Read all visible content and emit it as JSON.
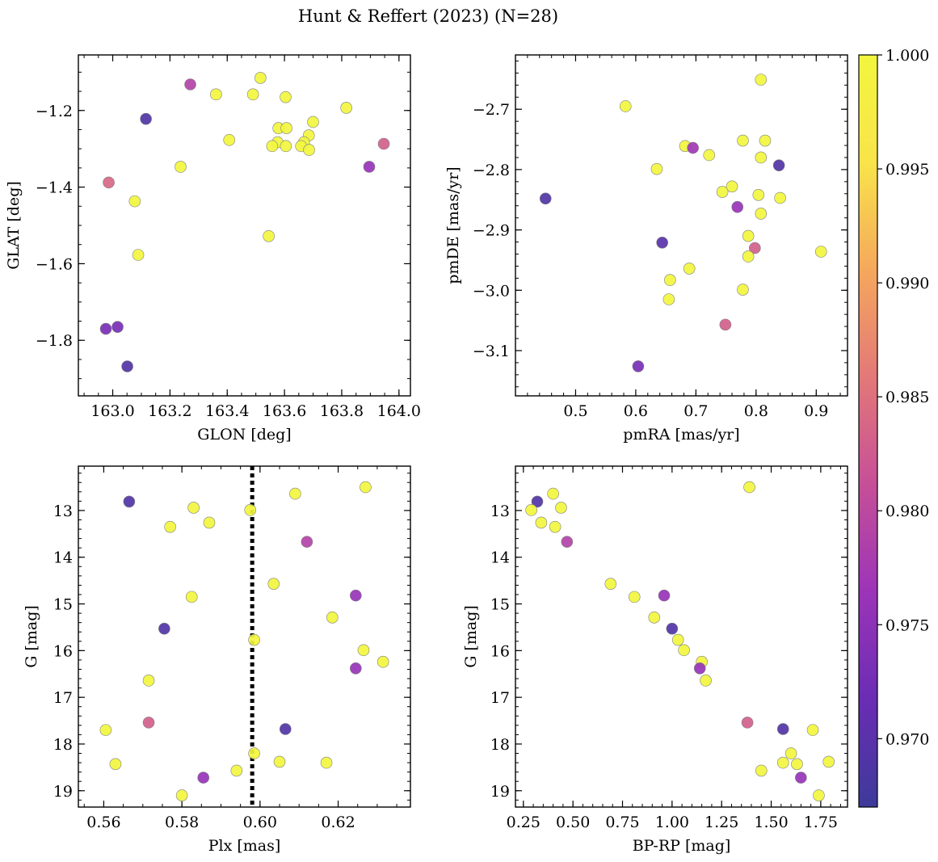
{
  "figure": {
    "title": "Hunt & Reffert (2023) (N=28)",
    "colorbar": {
      "vmin": 0.967,
      "vmax": 1.0,
      "ticks": [
        0.97,
        0.975,
        0.98,
        0.985,
        0.99,
        0.995,
        1.0
      ],
      "tick_labels": [
        "0.970",
        "0.975",
        "0.980",
        "0.985",
        "0.990",
        "0.995",
        "1.000"
      ],
      "colormap": "plasma",
      "colormap_stops": [
        "#3d3a9a",
        "#6a2db4",
        "#9c34b8",
        "#c64f98",
        "#e37878",
        "#f5a85c",
        "#f9e44a",
        "#f2f63e"
      ]
    },
    "marker_edge_color": "#7f7f7f",
    "vline_color": "#000000"
  },
  "chart_data": [
    {
      "type": "scatter",
      "xlabel": "GLON [deg]",
      "ylabel": "GLAT [deg]",
      "xlim": [
        162.88,
        164.04
      ],
      "ylim": [
        -1.945,
        -1.055
      ],
      "y_inverted": false,
      "xticks": [
        163.0,
        163.2,
        163.4,
        163.6,
        163.8,
        164.0
      ],
      "xtick_labels": [
        "163.0",
        "163.2",
        "163.4",
        "163.6",
        "163.8",
        "164.0"
      ],
      "xminor": 0.05,
      "yticks": [
        -1.8,
        -1.6,
        -1.4,
        -1.2
      ],
      "ytick_labels": [
        "−1.8",
        "−1.6",
        "−1.4",
        "−1.2"
      ],
      "yminor": 0.05,
      "points": [
        {
          "x": 163.271,
          "y": -1.132,
          "c": 0.979
        },
        {
          "x": 163.516,
          "y": -1.115,
          "c": 1.0
        },
        {
          "x": 163.361,
          "y": -1.158,
          "c": 1.0
        },
        {
          "x": 163.49,
          "y": -1.158,
          "c": 1.0
        },
        {
          "x": 163.604,
          "y": -1.165,
          "c": 1.0
        },
        {
          "x": 163.816,
          "y": -1.193,
          "c": 1.0
        },
        {
          "x": 163.116,
          "y": -1.222,
          "c": 0.969
        },
        {
          "x": 163.7,
          "y": -1.23,
          "c": 1.0
        },
        {
          "x": 163.579,
          "y": -1.246,
          "c": 1.0
        },
        {
          "x": 163.607,
          "y": -1.246,
          "c": 1.0
        },
        {
          "x": 163.685,
          "y": -1.265,
          "c": 1.0
        },
        {
          "x": 163.407,
          "y": -1.277,
          "c": 1.0
        },
        {
          "x": 163.576,
          "y": -1.283,
          "c": 1.0
        },
        {
          "x": 163.668,
          "y": -1.283,
          "c": 1.0
        },
        {
          "x": 163.947,
          "y": -1.287,
          "c": 0.983
        },
        {
          "x": 163.557,
          "y": -1.293,
          "c": 1.0
        },
        {
          "x": 163.605,
          "y": -1.293,
          "c": 1.0
        },
        {
          "x": 163.658,
          "y": -1.293,
          "c": 1.0
        },
        {
          "x": 163.686,
          "y": -1.303,
          "c": 1.0
        },
        {
          "x": 163.237,
          "y": -1.347,
          "c": 1.0
        },
        {
          "x": 163.896,
          "y": -1.347,
          "c": 0.976
        },
        {
          "x": 162.986,
          "y": -1.388,
          "c": 0.984
        },
        {
          "x": 163.077,
          "y": -1.437,
          "c": 1.0
        },
        {
          "x": 163.545,
          "y": -1.528,
          "c": 1.0
        },
        {
          "x": 163.089,
          "y": -1.577,
          "c": 1.0
        },
        {
          "x": 162.976,
          "y": -1.77,
          "c": 0.973
        },
        {
          "x": 163.017,
          "y": -1.765,
          "c": 0.973
        },
        {
          "x": 163.051,
          "y": -1.868,
          "c": 0.969
        }
      ]
    },
    {
      "type": "scatter",
      "xlabel": "pmRA [mas/yr]",
      "ylabel": "pmDE [mas/yr]",
      "xlim": [
        0.4,
        0.952
      ],
      "ylim": [
        -3.175,
        -2.61
      ],
      "y_inverted": false,
      "xticks": [
        0.5,
        0.6,
        0.7,
        0.8,
        0.9
      ],
      "xtick_labels": [
        "0.5",
        "0.6",
        "0.7",
        "0.8",
        "0.9"
      ],
      "xminor": 0.02,
      "yticks": [
        -3.1,
        -3.0,
        -2.9,
        -2.8,
        -2.7
      ],
      "ytick_labels": [
        "−3.1",
        "−3.0",
        "−2.9",
        "−2.8",
        "−2.7"
      ],
      "yminor": 0.02,
      "points": [
        {
          "x": 0.808,
          "y": -2.651,
          "c": 1.0
        },
        {
          "x": 0.583,
          "y": -2.695,
          "c": 1.0
        },
        {
          "x": 0.778,
          "y": -2.752,
          "c": 1.0
        },
        {
          "x": 0.815,
          "y": -2.752,
          "c": 1.0
        },
        {
          "x": 0.682,
          "y": -2.761,
          "c": 1.0
        },
        {
          "x": 0.695,
          "y": -2.764,
          "c": 0.977
        },
        {
          "x": 0.722,
          "y": -2.776,
          "c": 1.0
        },
        {
          "x": 0.808,
          "y": -2.78,
          "c": 1.0
        },
        {
          "x": 0.838,
          "y": -2.793,
          "c": 0.969
        },
        {
          "x": 0.635,
          "y": -2.799,
          "c": 1.0
        },
        {
          "x": 0.76,
          "y": -2.828,
          "c": 1.0
        },
        {
          "x": 0.744,
          "y": -2.837,
          "c": 1.0
        },
        {
          "x": 0.804,
          "y": -2.842,
          "c": 1.0
        },
        {
          "x": 0.84,
          "y": -2.847,
          "c": 1.0
        },
        {
          "x": 0.45,
          "y": -2.848,
          "c": 0.969
        },
        {
          "x": 0.769,
          "y": -2.862,
          "c": 0.976
        },
        {
          "x": 0.808,
          "y": -2.873,
          "c": 1.0
        },
        {
          "x": 0.787,
          "y": -2.91,
          "c": 1.0
        },
        {
          "x": 0.644,
          "y": -2.921,
          "c": 0.97
        },
        {
          "x": 0.798,
          "y": -2.93,
          "c": 0.983
        },
        {
          "x": 0.908,
          "y": -2.936,
          "c": 1.0
        },
        {
          "x": 0.787,
          "y": -2.944,
          "c": 1.0
        },
        {
          "x": 0.689,
          "y": -2.964,
          "c": 1.0
        },
        {
          "x": 0.657,
          "y": -2.983,
          "c": 1.0
        },
        {
          "x": 0.778,
          "y": -2.999,
          "c": 1.0
        },
        {
          "x": 0.655,
          "y": -3.015,
          "c": 1.0
        },
        {
          "x": 0.749,
          "y": -3.057,
          "c": 0.983
        },
        {
          "x": 0.604,
          "y": -3.126,
          "c": 0.973
        }
      ]
    },
    {
      "type": "scatter",
      "xlabel": "Plx [mas]",
      "ylabel": "G [mag]",
      "xlim": [
        0.5535,
        0.6385
      ],
      "ylim": [
        19.35,
        12.05
      ],
      "y_inverted": true,
      "vline": 0.598,
      "xticks": [
        0.56,
        0.58,
        0.6,
        0.62
      ],
      "xtick_labels": [
        "0.56",
        "0.58",
        "0.60",
        "0.62"
      ],
      "xminor": 0.005,
      "yticks": [
        13,
        14,
        15,
        16,
        17,
        18,
        19
      ],
      "ytick_labels": [
        "13",
        "14",
        "15",
        "16",
        "17",
        "18",
        "19"
      ],
      "yminor": 0.2,
      "points": [
        {
          "x": 0.627,
          "y": 12.5,
          "c": 1.0
        },
        {
          "x": 0.609,
          "y": 12.64,
          "c": 1.0
        },
        {
          "x": 0.5665,
          "y": 12.81,
          "c": 0.969
        },
        {
          "x": 0.583,
          "y": 12.94,
          "c": 1.0
        },
        {
          "x": 0.5975,
          "y": 12.99,
          "c": 1.0
        },
        {
          "x": 0.587,
          "y": 13.26,
          "c": 1.0
        },
        {
          "x": 0.577,
          "y": 13.35,
          "c": 1.0
        },
        {
          "x": 0.612,
          "y": 13.67,
          "c": 0.979
        },
        {
          "x": 0.6035,
          "y": 14.57,
          "c": 1.0
        },
        {
          "x": 0.6245,
          "y": 14.82,
          "c": 0.976
        },
        {
          "x": 0.5825,
          "y": 14.85,
          "c": 1.0
        },
        {
          "x": 0.6185,
          "y": 15.29,
          "c": 1.0
        },
        {
          "x": 0.5755,
          "y": 15.53,
          "c": 0.969
        },
        {
          "x": 0.5985,
          "y": 15.77,
          "c": 1.0
        },
        {
          "x": 0.6265,
          "y": 15.99,
          "c": 1.0
        },
        {
          "x": 0.6315,
          "y": 16.24,
          "c": 1.0
        },
        {
          "x": 0.6245,
          "y": 16.38,
          "c": 0.976
        },
        {
          "x": 0.5715,
          "y": 16.64,
          "c": 1.0
        },
        {
          "x": 0.5715,
          "y": 17.54,
          "c": 0.983
        },
        {
          "x": 0.6065,
          "y": 17.68,
          "c": 0.969
        },
        {
          "x": 0.5605,
          "y": 17.7,
          "c": 1.0
        },
        {
          "x": 0.5985,
          "y": 18.2,
          "c": 1.0
        },
        {
          "x": 0.605,
          "y": 18.38,
          "c": 1.0
        },
        {
          "x": 0.617,
          "y": 18.4,
          "c": 1.0
        },
        {
          "x": 0.563,
          "y": 18.43,
          "c": 1.0
        },
        {
          "x": 0.594,
          "y": 18.57,
          "c": 1.0
        },
        {
          "x": 0.5855,
          "y": 18.72,
          "c": 0.976
        },
        {
          "x": 0.58,
          "y": 19.1,
          "c": 1.0
        }
      ]
    },
    {
      "type": "scatter",
      "xlabel": "BP-RP [mag]",
      "ylabel": "G [mag]",
      "xlim": [
        0.21,
        1.885
      ],
      "ylim": [
        19.35,
        12.05
      ],
      "y_inverted": true,
      "xticks": [
        0.25,
        0.5,
        0.75,
        1.0,
        1.25,
        1.5,
        1.75
      ],
      "xtick_labels": [
        "0.25",
        "0.50",
        "0.75",
        "1.00",
        "1.25",
        "1.50",
        "1.75"
      ],
      "xminor": 0.05,
      "yticks": [
        13,
        14,
        15,
        16,
        17,
        18,
        19
      ],
      "ytick_labels": [
        "13",
        "14",
        "15",
        "16",
        "17",
        "18",
        "19"
      ],
      "yminor": 0.2,
      "points": [
        {
          "x": 1.39,
          "y": 12.5,
          "c": 1.0
        },
        {
          "x": 0.4,
          "y": 12.64,
          "c": 1.0
        },
        {
          "x": 0.32,
          "y": 12.81,
          "c": 0.969
        },
        {
          "x": 0.44,
          "y": 12.94,
          "c": 1.0
        },
        {
          "x": 0.29,
          "y": 12.99,
          "c": 1.0
        },
        {
          "x": 0.34,
          "y": 13.26,
          "c": 1.0
        },
        {
          "x": 0.41,
          "y": 13.35,
          "c": 1.0
        },
        {
          "x": 0.47,
          "y": 13.67,
          "c": 0.979
        },
        {
          "x": 0.69,
          "y": 14.57,
          "c": 1.0
        },
        {
          "x": 0.96,
          "y": 14.82,
          "c": 0.976
        },
        {
          "x": 0.81,
          "y": 14.85,
          "c": 1.0
        },
        {
          "x": 0.91,
          "y": 15.29,
          "c": 1.0
        },
        {
          "x": 1.0,
          "y": 15.53,
          "c": 0.969
        },
        {
          "x": 1.03,
          "y": 15.77,
          "c": 1.0
        },
        {
          "x": 1.06,
          "y": 15.99,
          "c": 1.0
        },
        {
          "x": 1.15,
          "y": 16.24,
          "c": 1.0
        },
        {
          "x": 1.14,
          "y": 16.38,
          "c": 0.976
        },
        {
          "x": 1.17,
          "y": 16.64,
          "c": 1.0
        },
        {
          "x": 1.38,
          "y": 17.54,
          "c": 0.983
        },
        {
          "x": 1.56,
          "y": 17.68,
          "c": 0.969
        },
        {
          "x": 1.71,
          "y": 17.7,
          "c": 1.0
        },
        {
          "x": 1.6,
          "y": 18.2,
          "c": 1.0
        },
        {
          "x": 1.79,
          "y": 18.38,
          "c": 1.0
        },
        {
          "x": 1.56,
          "y": 18.4,
          "c": 1.0
        },
        {
          "x": 1.63,
          "y": 18.43,
          "c": 1.0
        },
        {
          "x": 1.45,
          "y": 18.57,
          "c": 1.0
        },
        {
          "x": 1.65,
          "y": 18.72,
          "c": 0.976
        },
        {
          "x": 1.74,
          "y": 19.1,
          "c": 1.0
        }
      ]
    }
  ]
}
